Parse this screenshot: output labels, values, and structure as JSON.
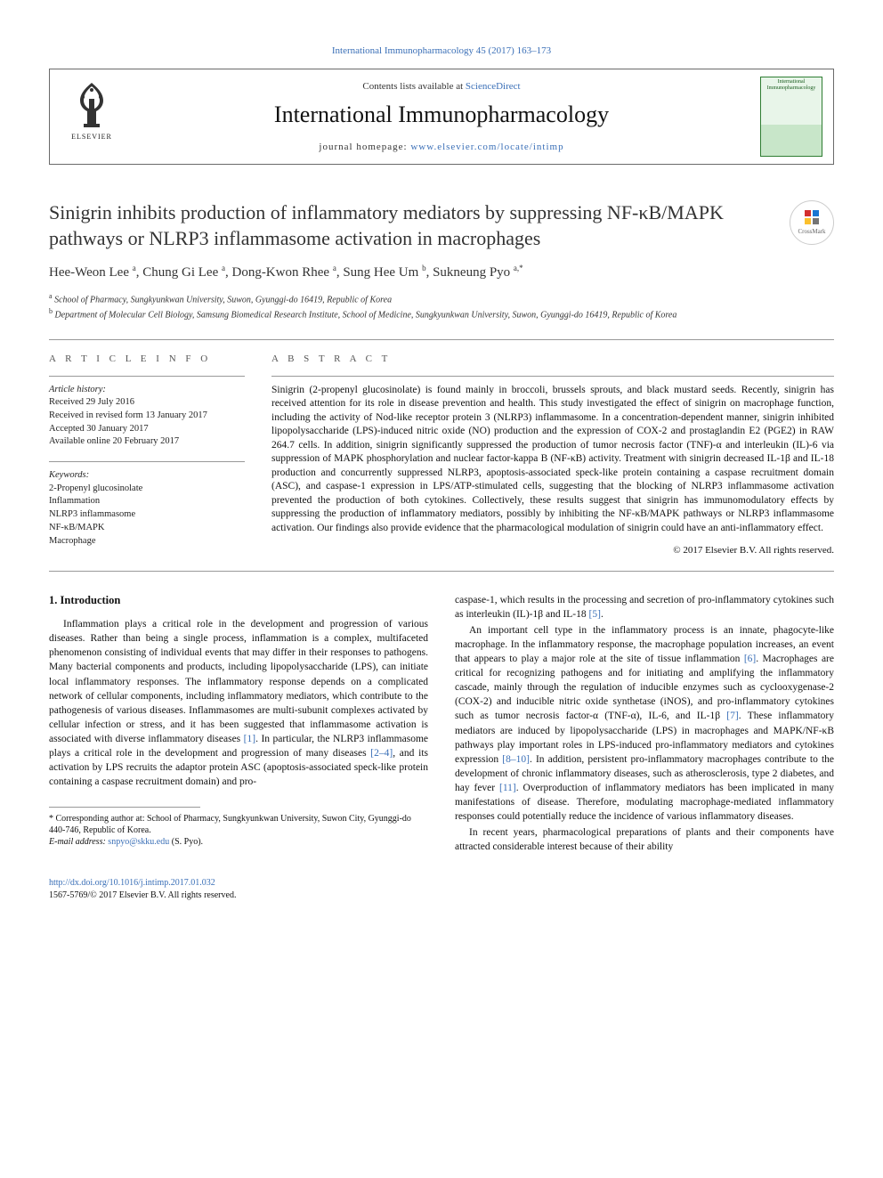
{
  "top_citation": "International Immunopharmacology 45 (2017) 163–173",
  "header": {
    "elsevier_label": "ELSEVIER",
    "contents_prefix": "Contents lists available at ",
    "contents_link": "ScienceDirect",
    "journal_name": "International Immunopharmacology",
    "homepage_prefix": "journal homepage: ",
    "homepage_link": "www.elsevier.com/locate/intimp",
    "cover_text": "International Immunopharmacology"
  },
  "crossmark_label": "CrossMark",
  "article": {
    "title": "Sinigrin inhibits production of inflammatory mediators by suppressing NF-κB/MAPK pathways or NLRP3 inflammasome activation in macrophages",
    "authors_html": "Hee-Weon Lee <sup>a</sup>, Chung Gi Lee <sup>a</sup>, Dong-Kwon Rhee <sup>a</sup>, Sung Hee Um <sup>b</sup>, Sukneung Pyo <sup>a,*</sup>",
    "affiliations": [
      {
        "sup": "a",
        "text": "School of Pharmacy, Sungkyunkwan University, Suwon, Gyunggi-do 16419, Republic of Korea"
      },
      {
        "sup": "b",
        "text": "Department of Molecular Cell Biology, Samsung Biomedical Research Institute, School of Medicine, Sungkyunkwan University, Suwon, Gyunggi-do 16419, Republic of Korea"
      }
    ]
  },
  "info_header": "a r t i c l e   i n f o",
  "abstract_header": "a b s t r a c t",
  "history": {
    "label": "Article history:",
    "items": [
      "Received 29 July 2016",
      "Received in revised form 13 January 2017",
      "Accepted 30 January 2017",
      "Available online 20 February 2017"
    ]
  },
  "keywords": {
    "label": "Keywords:",
    "items": [
      "2-Propenyl glucosinolate",
      "Inflammation",
      "NLRP3 inflammasome",
      "NF-κB/MAPK",
      "Macrophage"
    ]
  },
  "abstract": "Sinigrin (2-propenyl glucosinolate) is found mainly in broccoli, brussels sprouts, and black mustard seeds. Recently, sinigrin has received attention for its role in disease prevention and health. This study investigated the effect of sinigrin on macrophage function, including the activity of Nod-like receptor protein 3 (NLRP3) inflammasome. In a concentration-dependent manner, sinigrin inhibited lipopolysaccharide (LPS)-induced nitric oxide (NO) production and the expression of COX-2 and prostaglandin E2 (PGE2) in RAW 264.7 cells. In addition, sinigrin significantly suppressed the production of tumor necrosis factor (TNF)-α and interleukin (IL)-6 via suppression of MAPK phosphorylation and nuclear factor-kappa B (NF-κB) activity. Treatment with sinigrin decreased IL-1β and IL-18 production and concurrently suppressed NLRP3, apoptosis-associated speck-like protein containing a caspase recruitment domain (ASC), and caspase-1 expression in LPS/ATP-stimulated cells, suggesting that the blocking of NLRP3 inflammasome activation prevented the production of both cytokines. Collectively, these results suggest that sinigrin has immunomodulatory effects by suppressing the production of inflammatory mediators, possibly by inhibiting the NF-κB/MAPK pathways or NLRP3 inflammasome activation. Our findings also provide evidence that the pharmacological modulation of sinigrin could have an anti-inflammatory effect.",
  "copyright": "© 2017 Elsevier B.V. All rights reserved.",
  "section1_heading": "1. Introduction",
  "paras_left": [
    "Inflammation plays a critical role in the development and progression of various diseases. Rather than being a single process, inflammation is a complex, multifaceted phenomenon consisting of individual events that may differ in their responses to pathogens. Many bacterial components and products, including lipopolysaccharide (LPS), can initiate local inflammatory responses. The inflammatory response depends on a complicated network of cellular components, including inflammatory mediators, which contribute to the pathogenesis of various diseases. Inflammasomes are multi-subunit complexes activated by cellular infection or stress, and it has been suggested that inflammasome activation is associated with diverse inflammatory diseases [1]. In particular, the NLRP3 inflammasome plays a critical role in the development and progression of many diseases [2–4], and its activation by LPS recruits the adaptor protein ASC (apoptosis-associated speck-like protein containing a caspase recruitment domain) and pro-"
  ],
  "paras_right": [
    "caspase-1, which results in the processing and secretion of pro-inflammatory cytokines such as interleukin (IL)-1β and IL-18 [5].",
    "An important cell type in the inflammatory process is an innate, phagocyte-like macrophage. In the inflammatory response, the macrophage population increases, an event that appears to play a major role at the site of tissue inflammation [6]. Macrophages are critical for recognizing pathogens and for initiating and amplifying the inflammatory cascade, mainly through the regulation of inducible enzymes such as cyclooxygenase-2 (COX-2) and inducible nitric oxide synthetase (iNOS), and pro-inflammatory cytokines such as tumor necrosis factor-α (TNF-α), IL-6, and IL-1β [7]. These inflammatory mediators are induced by lipopolysaccharide (LPS) in macrophages and MAPK/NF-κB pathways play important roles in LPS-induced pro-inflammatory mediators and cytokines expression [8–10]. In addition, persistent pro-inflammatory macrophages contribute to the development of chronic inflammatory diseases, such as atherosclerosis, type 2 diabetes, and hay fever [11]. Overproduction of inflammatory mediators has been implicated in many manifestations of disease. Therefore, modulating macrophage-mediated inflammatory responses could potentially reduce the incidence of various inflammatory diseases.",
    "In recent years, pharmacological preparations of plants and their components have attracted considerable interest because of their ability"
  ],
  "footnote": {
    "star": "* Corresponding author at: School of Pharmacy, Sungkyunkwan University, Suwon City, Gyunggi-do 440-746, Republic of Korea.",
    "email_label": "E-mail address: ",
    "email": "snpyo@skku.edu",
    "email_who": " (S. Pyo)."
  },
  "footer": {
    "doi": "http://dx.doi.org/10.1016/j.intimp.2017.01.032",
    "issn_line": "1567-5769/© 2017 Elsevier B.V. All rights reserved."
  },
  "cites": {
    "c1": "[1]",
    "c24": "[2–4]",
    "c5": "[5]",
    "c6": "[6]",
    "c7": "[7]",
    "c810": "[8–10]",
    "c11": "[11]"
  },
  "colors": {
    "link": "#3a6fb7",
    "text": "#111111",
    "border": "#6a6a6a",
    "cover_border": "#2e7d32"
  }
}
